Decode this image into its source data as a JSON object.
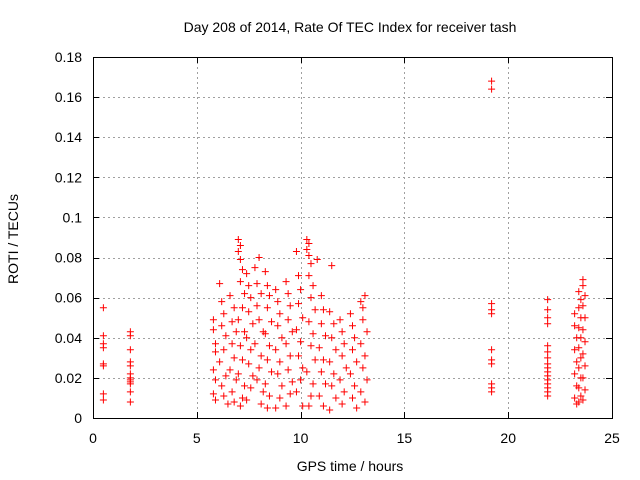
{
  "chart_data": {
    "type": "scatter",
    "title": "Day 208 of 2014, Rate Of TEC Index for receiver tash",
    "xlabel": "GPS time / hours",
    "ylabel": "ROTI / TECUs",
    "xlim": [
      0,
      25
    ],
    "ylim": [
      0,
      0.18
    ],
    "xticks": [
      0,
      5,
      10,
      15,
      20,
      25
    ],
    "yticks": [
      0,
      0.02,
      0.04,
      0.06,
      0.08,
      0.1,
      0.12,
      0.14,
      0.16,
      0.18
    ],
    "grid": true,
    "marker": "+",
    "color": "#ff0000",
    "series": [
      {
        "values": [
          [
            0.5,
            0.055
          ],
          [
            0.5,
            0.041
          ],
          [
            0.5,
            0.037
          ],
          [
            0.5,
            0.035
          ],
          [
            0.5,
            0.027
          ],
          [
            0.5,
            0.026
          ],
          [
            0.5,
            0.012
          ],
          [
            0.5,
            0.009
          ],
          [
            1.8,
            0.043
          ],
          [
            1.8,
            0.041
          ],
          [
            1.8,
            0.034
          ],
          [
            1.8,
            0.028
          ],
          [
            1.8,
            0.026
          ],
          [
            1.8,
            0.022
          ],
          [
            1.8,
            0.02
          ],
          [
            1.8,
            0.019
          ],
          [
            1.8,
            0.018
          ],
          [
            1.8,
            0.017
          ],
          [
            1.8,
            0.013
          ],
          [
            1.8,
            0.008
          ],
          [
            5.8,
            0.049
          ],
          [
            5.8,
            0.044
          ],
          [
            5.9,
            0.037
          ],
          [
            5.9,
            0.033
          ],
          [
            5.8,
            0.024
          ],
          [
            5.9,
            0.019
          ],
          [
            5.8,
            0.012
          ],
          [
            5.9,
            0.009
          ],
          [
            6.1,
            0.067
          ],
          [
            6.2,
            0.058
          ],
          [
            6.3,
            0.052
          ],
          [
            6.2,
            0.046
          ],
          [
            6.4,
            0.041
          ],
          [
            6.3,
            0.034
          ],
          [
            6.1,
            0.028
          ],
          [
            6.4,
            0.021
          ],
          [
            6.2,
            0.016
          ],
          [
            6.3,
            0.011
          ],
          [
            6.5,
            0.007
          ],
          [
            6.6,
            0.061
          ],
          [
            6.8,
            0.055
          ],
          [
            6.7,
            0.048
          ],
          [
            6.9,
            0.043
          ],
          [
            6.7,
            0.037
          ],
          [
            6.8,
            0.03
          ],
          [
            6.6,
            0.024
          ],
          [
            6.9,
            0.019
          ],
          [
            6.7,
            0.013
          ],
          [
            6.8,
            0.008
          ],
          [
            7.0,
            0.089
          ],
          [
            7.1,
            0.086
          ],
          [
            7.0,
            0.083
          ],
          [
            7.1,
            0.079
          ],
          [
            7.2,
            0.074
          ],
          [
            7.1,
            0.068
          ],
          [
            7.3,
            0.062
          ],
          [
            7.2,
            0.055
          ],
          [
            7.0,
            0.049
          ],
          [
            7.3,
            0.043
          ],
          [
            7.1,
            0.036
          ],
          [
            7.2,
            0.029
          ],
          [
            7.0,
            0.022
          ],
          [
            7.3,
            0.016
          ],
          [
            7.2,
            0.01
          ],
          [
            7.1,
            0.006
          ],
          [
            7.4,
            0.072
          ],
          [
            7.5,
            0.066
          ],
          [
            7.6,
            0.06
          ],
          [
            7.5,
            0.053
          ],
          [
            7.7,
            0.047
          ],
          [
            7.4,
            0.04
          ],
          [
            7.6,
            0.034
          ],
          [
            7.5,
            0.027
          ],
          [
            7.7,
            0.021
          ],
          [
            7.6,
            0.015
          ],
          [
            7.4,
            0.009
          ],
          [
            7.8,
            0.075
          ],
          [
            7.9,
            0.067
          ],
          [
            8.0,
            0.08
          ],
          [
            8.1,
            0.062
          ],
          [
            7.9,
            0.056
          ],
          [
            8.0,
            0.049
          ],
          [
            8.2,
            0.043
          ],
          [
            7.8,
            0.037
          ],
          [
            8.1,
            0.031
          ],
          [
            8.0,
            0.025
          ],
          [
            7.9,
            0.019
          ],
          [
            8.2,
            0.013
          ],
          [
            8.1,
            0.007
          ],
          [
            8.3,
            0.073
          ],
          [
            8.4,
            0.066
          ],
          [
            8.5,
            0.061
          ],
          [
            8.4,
            0.055
          ],
          [
            8.6,
            0.048
          ],
          [
            8.3,
            0.042
          ],
          [
            8.5,
            0.036
          ],
          [
            8.4,
            0.029
          ],
          [
            8.6,
            0.023
          ],
          [
            8.3,
            0.017
          ],
          [
            8.5,
            0.011
          ],
          [
            8.4,
            0.005
          ],
          [
            8.8,
            0.064
          ],
          [
            8.9,
            0.058
          ],
          [
            9.0,
            0.052
          ],
          [
            8.9,
            0.046
          ],
          [
            9.1,
            0.04
          ],
          [
            8.8,
            0.034
          ],
          [
            9.0,
            0.028
          ],
          [
            8.9,
            0.022
          ],
          [
            9.1,
            0.016
          ],
          [
            9.0,
            0.01
          ],
          [
            8.8,
            0.005
          ],
          [
            9.3,
            0.068
          ],
          [
            9.4,
            0.062
          ],
          [
            9.5,
            0.056
          ],
          [
            9.4,
            0.049
          ],
          [
            9.6,
            0.043
          ],
          [
            9.3,
            0.037
          ],
          [
            9.5,
            0.031
          ],
          [
            9.4,
            0.024
          ],
          [
            9.6,
            0.018
          ],
          [
            9.5,
            0.012
          ],
          [
            9.3,
            0.006
          ],
          [
            9.8,
            0.083
          ],
          [
            9.9,
            0.071
          ],
          [
            10.0,
            0.064
          ],
          [
            9.9,
            0.057
          ],
          [
            10.1,
            0.05
          ],
          [
            9.8,
            0.044
          ],
          [
            10.0,
            0.038
          ],
          [
            9.9,
            0.031
          ],
          [
            10.1,
            0.025
          ],
          [
            10.0,
            0.019
          ],
          [
            9.8,
            0.013
          ],
          [
            10.1,
            0.006
          ],
          [
            10.3,
            0.089
          ],
          [
            10.4,
            0.087
          ],
          [
            10.3,
            0.084
          ],
          [
            10.4,
            0.081
          ],
          [
            10.5,
            0.077
          ],
          [
            10.4,
            0.071
          ],
          [
            10.6,
            0.066
          ],
          [
            10.5,
            0.06
          ],
          [
            10.7,
            0.054
          ],
          [
            10.4,
            0.048
          ],
          [
            10.6,
            0.042
          ],
          [
            10.5,
            0.036
          ],
          [
            10.7,
            0.029
          ],
          [
            10.3,
            0.023
          ],
          [
            10.6,
            0.017
          ],
          [
            10.5,
            0.011
          ],
          [
            10.4,
            0.006
          ],
          [
            10.8,
            0.079
          ],
          [
            11.0,
            0.061
          ],
          [
            11.1,
            0.054
          ],
          [
            11.0,
            0.047
          ],
          [
            11.2,
            0.041
          ],
          [
            10.9,
            0.035
          ],
          [
            11.1,
            0.029
          ],
          [
            11.0,
            0.023
          ],
          [
            11.2,
            0.017
          ],
          [
            10.9,
            0.011
          ],
          [
            11.1,
            0.006
          ],
          [
            11.5,
            0.076
          ],
          [
            11.4,
            0.053
          ],
          [
            11.6,
            0.047
          ],
          [
            11.5,
            0.04
          ],
          [
            11.7,
            0.034
          ],
          [
            11.4,
            0.028
          ],
          [
            11.6,
            0.022
          ],
          [
            11.5,
            0.016
          ],
          [
            11.7,
            0.01
          ],
          [
            11.4,
            0.004
          ],
          [
            11.9,
            0.049
          ],
          [
            12.0,
            0.043
          ],
          [
            12.1,
            0.037
          ],
          [
            12.0,
            0.031
          ],
          [
            12.2,
            0.025
          ],
          [
            11.9,
            0.019
          ],
          [
            12.1,
            0.013
          ],
          [
            12.0,
            0.007
          ],
          [
            12.4,
            0.052
          ],
          [
            12.5,
            0.046
          ],
          [
            12.6,
            0.04
          ],
          [
            12.5,
            0.034
          ],
          [
            12.7,
            0.028
          ],
          [
            12.4,
            0.022
          ],
          [
            12.6,
            0.016
          ],
          [
            12.5,
            0.01
          ],
          [
            12.7,
            0.005
          ],
          [
            12.9,
            0.058
          ],
          [
            13.0,
            0.055
          ],
          [
            13.1,
            0.061
          ],
          [
            13.0,
            0.049
          ],
          [
            13.2,
            0.043
          ],
          [
            12.9,
            0.037
          ],
          [
            13.1,
            0.031
          ],
          [
            13.0,
            0.025
          ],
          [
            13.2,
            0.019
          ],
          [
            12.9,
            0.013
          ],
          [
            13.1,
            0.008
          ],
          [
            19.2,
            0.168
          ],
          [
            19.2,
            0.164
          ],
          [
            19.2,
            0.057
          ],
          [
            19.2,
            0.054
          ],
          [
            19.2,
            0.052
          ],
          [
            19.2,
            0.034
          ],
          [
            19.2,
            0.029
          ],
          [
            19.2,
            0.027
          ],
          [
            19.2,
            0.017
          ],
          [
            19.2,
            0.015
          ],
          [
            19.2,
            0.013
          ],
          [
            21.9,
            0.059
          ],
          [
            21.9,
            0.054
          ],
          [
            21.9,
            0.05
          ],
          [
            21.9,
            0.047
          ],
          [
            21.9,
            0.036
          ],
          [
            21.9,
            0.033
          ],
          [
            21.9,
            0.03
          ],
          [
            21.9,
            0.027
          ],
          [
            21.9,
            0.025
          ],
          [
            21.9,
            0.023
          ],
          [
            21.9,
            0.021
          ],
          [
            21.9,
            0.019
          ],
          [
            21.9,
            0.017
          ],
          [
            21.9,
            0.015
          ],
          [
            21.9,
            0.013
          ],
          [
            21.9,
            0.011
          ],
          [
            23.2,
            0.052
          ],
          [
            23.2,
            0.046
          ],
          [
            23.3,
            0.04
          ],
          [
            23.2,
            0.034
          ],
          [
            23.3,
            0.028
          ],
          [
            23.2,
            0.022
          ],
          [
            23.3,
            0.016
          ],
          [
            23.2,
            0.01
          ],
          [
            23.3,
            0.007
          ],
          [
            23.4,
            0.063
          ],
          [
            23.5,
            0.059
          ],
          [
            23.4,
            0.055
          ],
          [
            23.5,
            0.05
          ],
          [
            23.4,
            0.045
          ],
          [
            23.5,
            0.04
          ],
          [
            23.4,
            0.035
          ],
          [
            23.5,
            0.03
          ],
          [
            23.4,
            0.025
          ],
          [
            23.5,
            0.02
          ],
          [
            23.4,
            0.015
          ],
          [
            23.5,
            0.011
          ],
          [
            23.4,
            0.008
          ],
          [
            23.6,
            0.069
          ],
          [
            23.6,
            0.066
          ],
          [
            23.7,
            0.061
          ],
          [
            23.6,
            0.056
          ],
          [
            23.7,
            0.05
          ],
          [
            23.6,
            0.044
          ],
          [
            23.7,
            0.038
          ],
          [
            23.6,
            0.032
          ],
          [
            23.7,
            0.026
          ],
          [
            23.6,
            0.02
          ],
          [
            23.7,
            0.014
          ],
          [
            23.6,
            0.009
          ]
        ]
      }
    ]
  }
}
